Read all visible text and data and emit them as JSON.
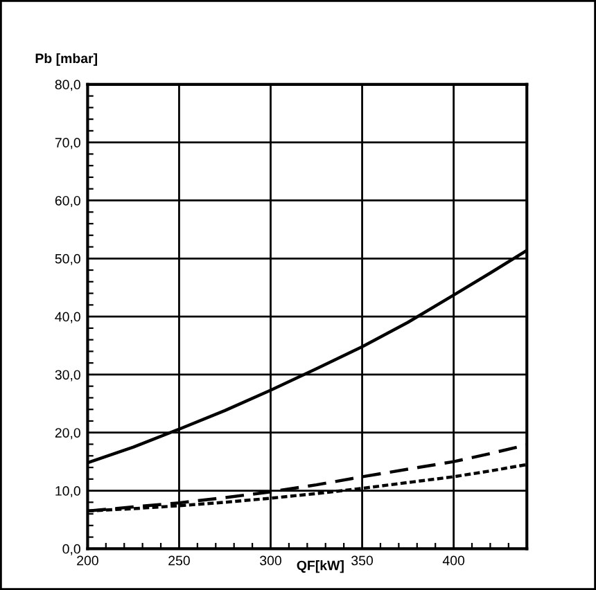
{
  "chart_data": {
    "type": "line",
    "xlabel": "QF[kW]",
    "ylabel": "Pb [mbar]",
    "x": [
      200,
      225,
      250,
      275,
      300,
      325,
      350,
      375,
      400,
      420,
      440
    ],
    "series": [
      {
        "color": "#000000",
        "line_style": "solid",
        "values": [
          14.8,
          17.5,
          20.6,
          23.8,
          27.3,
          31.0,
          34.8,
          39.0,
          43.7,
          47.5,
          51.4
        ]
      },
      {
        "color": "#000000",
        "line_style": "dashed",
        "values": [
          6.5,
          7.2,
          7.9,
          8.8,
          9.8,
          11.0,
          12.4,
          13.7,
          15.0,
          16.4,
          17.9
        ]
      },
      {
        "color": "#000000",
        "line_style": "dotted",
        "values": [
          6.5,
          6.9,
          7.4,
          8.0,
          8.7,
          9.5,
          10.4,
          11.4,
          12.4,
          13.4,
          14.5
        ]
      }
    ],
    "xlim": [
      200,
      440
    ],
    "ylim": [
      0,
      80
    ],
    "xticks": [
      200,
      250,
      300,
      350,
      400,
      {
        "value": 210,
        "label": null
      },
      {
        "value": 220,
        "label": null
      },
      {
        "value": 230,
        "label": null
      },
      {
        "value": 240,
        "label": null
      },
      {
        "value": 260,
        "label": null
      },
      {
        "value": 270,
        "label": null
      },
      {
        "value": 280,
        "label": null
      },
      {
        "value": 290,
        "label": null
      },
      {
        "value": 310,
        "label": null
      },
      {
        "value": 320,
        "label": null
      },
      {
        "value": 330,
        "label": null
      },
      {
        "value": 340,
        "label": null
      },
      {
        "value": 360,
        "label": null
      },
      {
        "value": 370,
        "label": null
      },
      {
        "value": 380,
        "label": null
      },
      {
        "value": 390,
        "label": null
      },
      {
        "value": 410,
        "label": null
      },
      {
        "value": 420,
        "label": null
      },
      {
        "value": 430,
        "label": null
      }
    ],
    "yticks": [
      {
        "value": 0,
        "label": "0,0"
      },
      {
        "value": 10,
        "label": "10,0"
      },
      {
        "value": 20,
        "label": "20,0"
      },
      {
        "value": 30,
        "label": "30,0"
      },
      {
        "value": 40,
        "label": "40,0"
      },
      {
        "value": 50,
        "label": "50,0"
      },
      {
        "value": 60,
        "label": "60,0"
      },
      {
        "value": 70,
        "label": "70,0"
      },
      {
        "value": 80,
        "label": "80,0"
      },
      {
        "value": 2,
        "label": null
      },
      {
        "value": 4,
        "label": null
      },
      {
        "value": 6,
        "label": null
      },
      {
        "value": 8,
        "label": null
      },
      {
        "value": 12,
        "label": null
      },
      {
        "value": 14,
        "label": null
      },
      {
        "value": 16,
        "label": null
      },
      {
        "value": 18,
        "label": null
      },
      {
        "value": 22,
        "label": null
      },
      {
        "value": 24,
        "label": null
      },
      {
        "value": 26,
        "label": null
      },
      {
        "value": 28,
        "label": null
      },
      {
        "value": 32,
        "label": null
      },
      {
        "value": 34,
        "label": null
      },
      {
        "value": 36,
        "label": null
      },
      {
        "value": 38,
        "label": null
      },
      {
        "value": 42,
        "label": null
      },
      {
        "value": 44,
        "label": null
      },
      {
        "value": 46,
        "label": null
      },
      {
        "value": 48,
        "label": null
      },
      {
        "value": 52,
        "label": null
      },
      {
        "value": 54,
        "label": null
      },
      {
        "value": 56,
        "label": null
      },
      {
        "value": 58,
        "label": null
      },
      {
        "value": 62,
        "label": null
      },
      {
        "value": 64,
        "label": null
      },
      {
        "value": 66,
        "label": null
      },
      {
        "value": 68,
        "label": null
      },
      {
        "value": 72,
        "label": null
      },
      {
        "value": 74,
        "label": null
      },
      {
        "value": 76,
        "label": null
      },
      {
        "value": 78,
        "label": null
      }
    ],
    "grid": true,
    "legend": false
  }
}
